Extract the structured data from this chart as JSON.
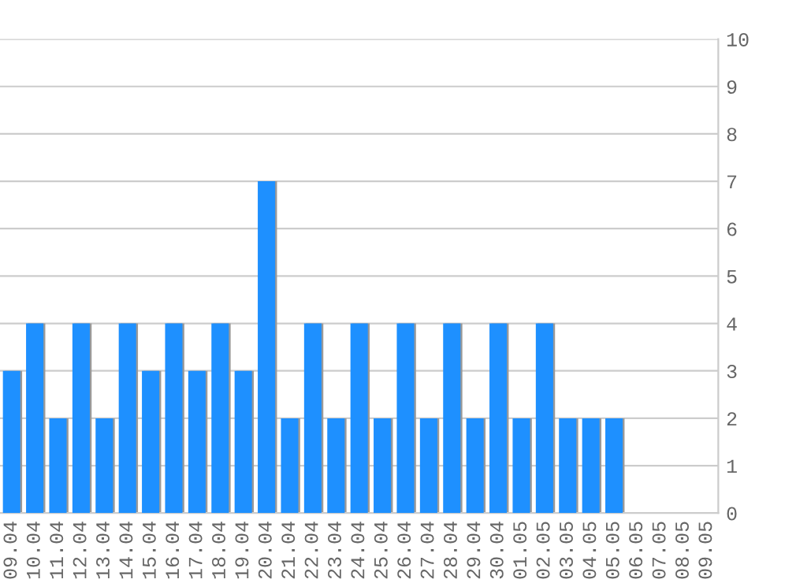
{
  "chart_data": {
    "type": "bar",
    "categories": [
      "09.04",
      "10.04",
      "11.04",
      "12.04",
      "13.04",
      "14.04",
      "15.04",
      "16.04",
      "17.04",
      "18.04",
      "19.04",
      "20.04",
      "21.04",
      "22.04",
      "23.04",
      "24.04",
      "25.04",
      "26.04",
      "27.04",
      "28.04",
      "29.04",
      "30.04",
      "01.05",
      "02.05",
      "03.05",
      "04.05",
      "05.05",
      "06.05",
      "07.05",
      "08.05",
      "09.05"
    ],
    "values": [
      3,
      4,
      2,
      4,
      2,
      4,
      3,
      4,
      3,
      4,
      3,
      7,
      2,
      4,
      2,
      4,
      2,
      4,
      2,
      4,
      2,
      4,
      2,
      4,
      2,
      2,
      2,
      0,
      0,
      0,
      0
    ],
    "color": "#1e90ff",
    "ylim": [
      0,
      10
    ],
    "yticks": [
      0,
      1,
      2,
      3,
      4,
      5,
      6,
      7,
      8,
      9,
      10
    ],
    "grid": "y",
    "legend": false
  }
}
